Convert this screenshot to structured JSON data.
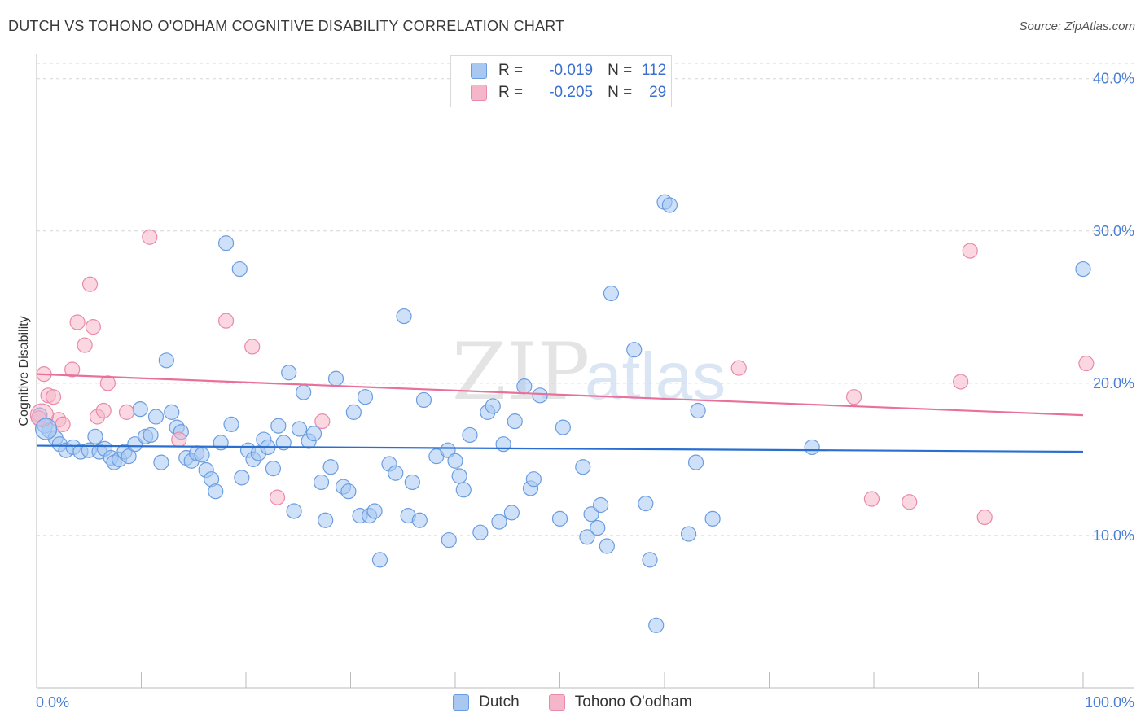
{
  "header": {
    "title": "DUTCH VS TOHONO O'ODHAM COGNITIVE DISABILITY CORRELATION CHART",
    "source": "Source: ZipAtlas.com"
  },
  "legend": {
    "rows": [
      {
        "r_label": "R =",
        "r_value": "-0.019",
        "n_label": "N =",
        "n_value": "112",
        "color": "#a8c8f2"
      },
      {
        "r_label": "R =",
        "r_value": "-0.205",
        "n_label": "N =",
        "n_value": "29",
        "color": "#f5b6c9"
      }
    ]
  },
  "chart_data": {
    "type": "scatter",
    "title": "DUTCH VS TOHONO O'ODHAM COGNITIVE DISABILITY CORRELATION CHART",
    "xlabel": "",
    "ylabel": "Cognitive Disability",
    "xlim": [
      0,
      100
    ],
    "ylim": [
      0,
      41
    ],
    "x_tick_labels": [
      "0.0%",
      "100.0%"
    ],
    "y_ticks": [
      10,
      20,
      30,
      40
    ],
    "y_tick_labels": [
      "10.0%",
      "20.0%",
      "30.0%",
      "40.0%"
    ],
    "grid": true,
    "watermark": "ZIPatlas",
    "series": [
      {
        "name": "Dutch",
        "color": "#a8c8f2",
        "stroke": "#6a9de0",
        "line_color": "#2a6fd0",
        "trend": [
          [
            0,
            15.9
          ],
          [
            100,
            15.5
          ]
        ],
        "points": [
          [
            0.3,
            17.9
          ],
          [
            0.8,
            17.2
          ],
          [
            1.2,
            16.9
          ],
          [
            1.8,
            16.4
          ],
          [
            2.2,
            16.0
          ],
          [
            2.8,
            15.6
          ],
          [
            3.5,
            15.8
          ],
          [
            4.2,
            15.5
          ],
          [
            5.0,
            15.6
          ],
          [
            5.6,
            16.5
          ],
          [
            6.0,
            15.5
          ],
          [
            6.5,
            15.7
          ],
          [
            7.1,
            15.1
          ],
          [
            7.4,
            14.8
          ],
          [
            7.9,
            15.0
          ],
          [
            8.4,
            15.5
          ],
          [
            8.8,
            15.2
          ],
          [
            9.4,
            16.0
          ],
          [
            9.9,
            18.3
          ],
          [
            10.4,
            16.5
          ],
          [
            10.9,
            16.6
          ],
          [
            11.4,
            17.8
          ],
          [
            11.9,
            14.8
          ],
          [
            12.4,
            21.5
          ],
          [
            12.9,
            18.1
          ],
          [
            13.4,
            17.1
          ],
          [
            13.8,
            16.8
          ],
          [
            14.3,
            15.1
          ],
          [
            14.8,
            14.9
          ],
          [
            15.3,
            15.4
          ],
          [
            15.8,
            15.3
          ],
          [
            16.2,
            14.3
          ],
          [
            16.7,
            13.7
          ],
          [
            17.1,
            12.9
          ],
          [
            17.6,
            16.1
          ],
          [
            18.1,
            29.2
          ],
          [
            18.6,
            17.3
          ],
          [
            19.4,
            27.5
          ],
          [
            19.6,
            13.8
          ],
          [
            20.2,
            15.6
          ],
          [
            20.7,
            15.0
          ],
          [
            21.2,
            15.4
          ],
          [
            21.7,
            16.3
          ],
          [
            22.1,
            15.8
          ],
          [
            22.6,
            14.4
          ],
          [
            23.1,
            17.2
          ],
          [
            23.6,
            16.1
          ],
          [
            24.1,
            20.7
          ],
          [
            24.6,
            11.6
          ],
          [
            25.1,
            17.0
          ],
          [
            25.5,
            19.4
          ],
          [
            26.0,
            16.2
          ],
          [
            26.5,
            16.7
          ],
          [
            27.2,
            13.5
          ],
          [
            27.6,
            11.0
          ],
          [
            28.1,
            14.5
          ],
          [
            28.6,
            20.3
          ],
          [
            29.3,
            13.2
          ],
          [
            29.8,
            12.9
          ],
          [
            30.3,
            18.1
          ],
          [
            30.9,
            11.3
          ],
          [
            31.4,
            19.1
          ],
          [
            31.8,
            11.3
          ],
          [
            32.3,
            11.6
          ],
          [
            32.8,
            8.4
          ],
          [
            33.7,
            14.7
          ],
          [
            34.3,
            14.1
          ],
          [
            35.1,
            24.4
          ],
          [
            35.5,
            11.3
          ],
          [
            35.9,
            13.5
          ],
          [
            36.6,
            11.0
          ],
          [
            37.0,
            18.9
          ],
          [
            38.2,
            15.2
          ],
          [
            39.3,
            15.6
          ],
          [
            39.4,
            9.7
          ],
          [
            40.0,
            14.9
          ],
          [
            40.4,
            13.9
          ],
          [
            40.8,
            13.0
          ],
          [
            41.4,
            16.6
          ],
          [
            42.4,
            10.2
          ],
          [
            43.1,
            18.1
          ],
          [
            43.6,
            18.5
          ],
          [
            44.2,
            10.9
          ],
          [
            44.6,
            16.0
          ],
          [
            45.4,
            11.5
          ],
          [
            45.7,
            17.5
          ],
          [
            46.6,
            19.8
          ],
          [
            47.2,
            13.1
          ],
          [
            47.5,
            13.7
          ],
          [
            48.1,
            19.2
          ],
          [
            50.0,
            11.1
          ],
          [
            50.3,
            17.1
          ],
          [
            52.2,
            14.5
          ],
          [
            52.6,
            9.9
          ],
          [
            53.0,
            11.4
          ],
          [
            53.6,
            10.5
          ],
          [
            53.9,
            12.0
          ],
          [
            54.5,
            9.3
          ],
          [
            54.9,
            25.9
          ],
          [
            57.1,
            22.2
          ],
          [
            58.2,
            12.1
          ],
          [
            58.6,
            8.4
          ],
          [
            59.2,
            4.1
          ],
          [
            60.0,
            31.9
          ],
          [
            60.5,
            31.7
          ],
          [
            62.3,
            10.1
          ],
          [
            63.0,
            14.8
          ],
          [
            63.2,
            18.2
          ],
          [
            64.6,
            11.1
          ],
          [
            74.1,
            15.8
          ],
          [
            100.0,
            27.5
          ]
        ]
      },
      {
        "name": "Tohono O'odham",
        "color": "#f5b6c9",
        "stroke": "#e98aa9",
        "line_color": "#e8709a",
        "trend": [
          [
            0,
            20.6
          ],
          [
            100,
            17.9
          ]
        ],
        "points": [
          [
            0.7,
            20.6
          ],
          [
            1.1,
            19.2
          ],
          [
            1.6,
            19.1
          ],
          [
            2.1,
            17.6
          ],
          [
            2.5,
            17.3
          ],
          [
            3.4,
            20.9
          ],
          [
            3.9,
            24.0
          ],
          [
            4.6,
            22.5
          ],
          [
            5.1,
            26.5
          ],
          [
            5.4,
            23.7
          ],
          [
            5.8,
            17.8
          ],
          [
            6.4,
            18.2
          ],
          [
            6.8,
            20.0
          ],
          [
            8.6,
            18.1
          ],
          [
            10.8,
            29.6
          ],
          [
            13.6,
            16.3
          ],
          [
            18.1,
            24.1
          ],
          [
            20.6,
            22.4
          ],
          [
            23.0,
            12.5
          ],
          [
            27.3,
            17.5
          ],
          [
            67.1,
            21.0
          ],
          [
            78.1,
            19.1
          ],
          [
            79.8,
            12.4
          ],
          [
            83.4,
            12.2
          ],
          [
            88.3,
            20.1
          ],
          [
            89.2,
            28.7
          ],
          [
            90.6,
            11.2
          ],
          [
            100.3,
            21.3
          ],
          [
            0.2,
            17.7
          ]
        ]
      }
    ]
  },
  "bottom_legend": {
    "items": [
      {
        "label": "Dutch",
        "color": "#a8c8f2",
        "stroke": "#6a9de0"
      },
      {
        "label": "Tohono O'odham",
        "color": "#f5b6c9",
        "stroke": "#e98aa9"
      }
    ]
  }
}
